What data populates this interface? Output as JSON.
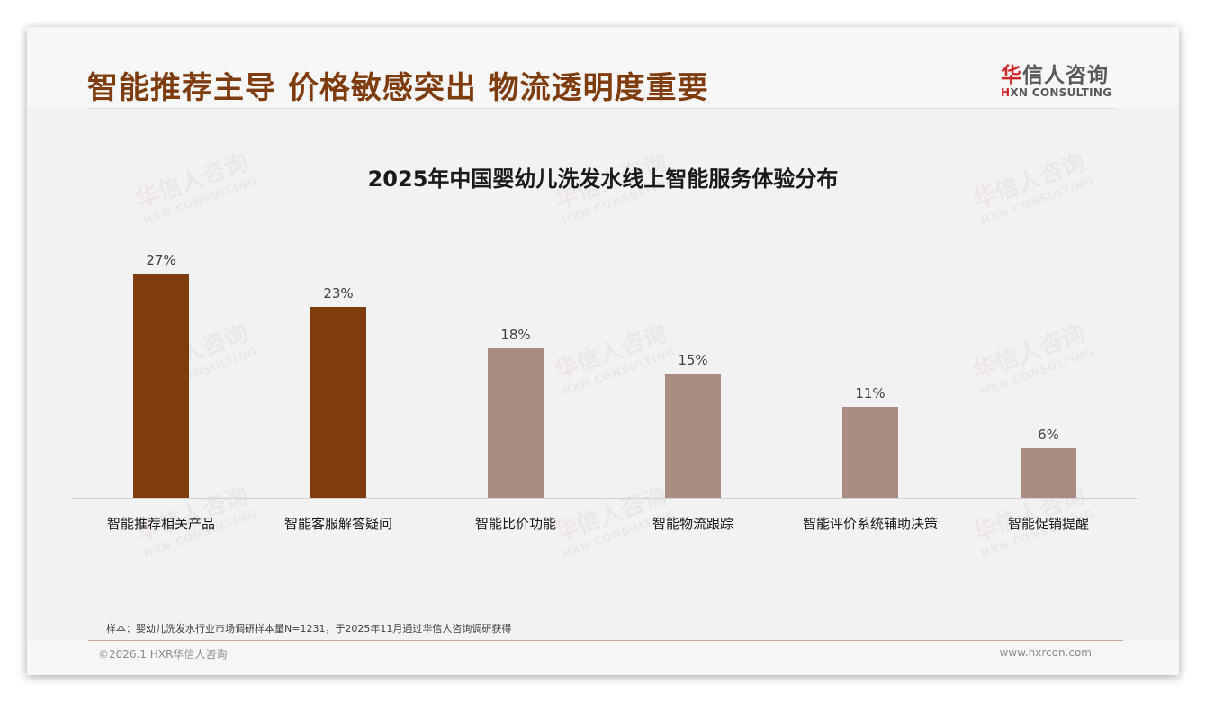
{
  "header": {
    "title": "智能推荐主导 价格敏感突出 物流透明度重要",
    "logo": {
      "cn_accent": "华",
      "cn_rest": "信人咨询",
      "en_accent": "H",
      "en_rest": "XN CONSULTING"
    }
  },
  "watermark": {
    "cn_accent": "华",
    "cn_rest": "信人咨询",
    "en": "HXN CONSULTING"
  },
  "colors": {
    "primary": "#7f3c0f",
    "secondary": "#ab8c82",
    "title": "#7f3c0f",
    "logo_accent": "#d0272c"
  },
  "chart_data": {
    "type": "bar",
    "title": "2025年中国婴幼儿洗发水线上智能服务体验分布",
    "categories": [
      "智能推荐相关产品",
      "智能客服解答疑问",
      "智能比价功能",
      "智能物流跟踪",
      "智能评价系统辅助决策",
      "智能促销提醒"
    ],
    "values": [
      27,
      23,
      18,
      15,
      11,
      6
    ],
    "value_labels": [
      "27%",
      "23%",
      "18%",
      "15%",
      "11%",
      "6%"
    ],
    "bar_colors": [
      "#7f3c0f",
      "#7f3c0f",
      "#ab8c82",
      "#ab8c82",
      "#ab8c82",
      "#ab8c82"
    ],
    "unit": "%",
    "xlabel": "",
    "ylabel": "",
    "ylim": [
      0,
      30
    ],
    "grid": false,
    "legend": null
  },
  "footer": {
    "note": "样本：婴幼儿洗发水行业市场调研样本量N=1231，于2025年11月通过华信人咨询调研获得",
    "copyright": "©2026.1 HXR华信人咨询",
    "website": "www.hxrcon.com"
  }
}
